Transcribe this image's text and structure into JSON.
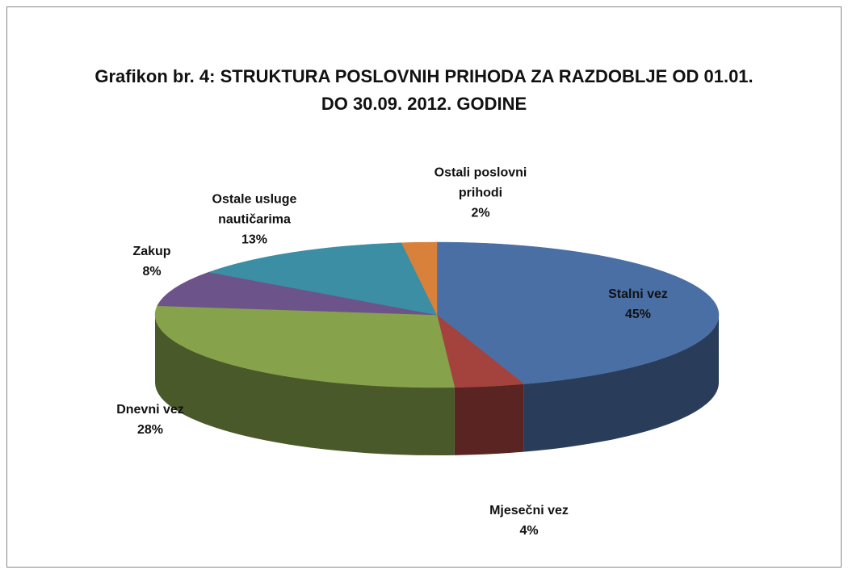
{
  "chart_data": {
    "type": "pie3d",
    "title": "Grafikon br. 4: STRUKTURA POSLOVNIH PRIHODA ZA RAZDOBLJE OD 01.01. DO 30.09. 2012. GODINE",
    "categories": [
      "Stalni vez",
      "Mjesečni vez",
      "Dnevni vez",
      "Zakup",
      "Ostale usluge nautičarima",
      "Ostali poslovni prihodi"
    ],
    "values": [
      45,
      4,
      28,
      8,
      13,
      2
    ],
    "value_labels": [
      "45%",
      "4%",
      "28%",
      "8%",
      "13%",
      "2%"
    ],
    "colors": [
      "#4a6fa5",
      "#a4423e",
      "#86a24b",
      "#6c5389",
      "#3b8ea3",
      "#d9803a"
    ]
  }
}
